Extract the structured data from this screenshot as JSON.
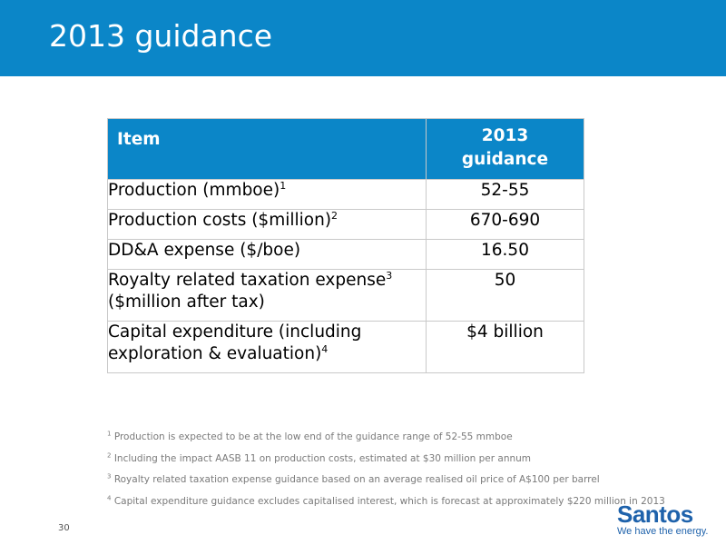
{
  "slide": {
    "title": "2013 guidance",
    "page_number": "30"
  },
  "table": {
    "header": {
      "item": "Item",
      "value_line1": "2013",
      "value_line2": "guidance"
    },
    "rows": [
      {
        "item": "Production (mmboe)",
        "sup": "1",
        "item_line2": "",
        "value": "52-55"
      },
      {
        "item": "Production costs ($million)",
        "sup": "2",
        "item_line2": "",
        "value": "670-690"
      },
      {
        "item": "DD&A expense ($/boe)",
        "sup": "",
        "item_line2": "",
        "value": "16.50"
      },
      {
        "item": "Royalty related taxation expense",
        "sup": "3",
        "item_line2": "($million after tax)",
        "value": "50"
      },
      {
        "item": "Capital expenditure (including",
        "sup": "",
        "item_line2": "exploration & evaluation)",
        "sup2": "4",
        "value": "$4 billion"
      }
    ]
  },
  "footnotes": [
    {
      "num": "1",
      "text": "Production is expected to be at the low end of the guidance range of 52-55 mmboe"
    },
    {
      "num": "2",
      "text": "Including the impact AASB 11 on production costs, estimated at $30 million per annum"
    },
    {
      "num": "3",
      "text": "Royalty related taxation expense guidance based on an average realised oil price of A$100 per barrel"
    },
    {
      "num": "4",
      "text": "Capital expenditure guidance excludes capitalised interest, which is forecast at approximately $220 million in 2013"
    }
  ],
  "logo": {
    "word": "Santos",
    "tagline": "We have the energy."
  },
  "colors": {
    "brand_blue": "#0b86c8",
    "logo_blue": "#1e62ab"
  }
}
